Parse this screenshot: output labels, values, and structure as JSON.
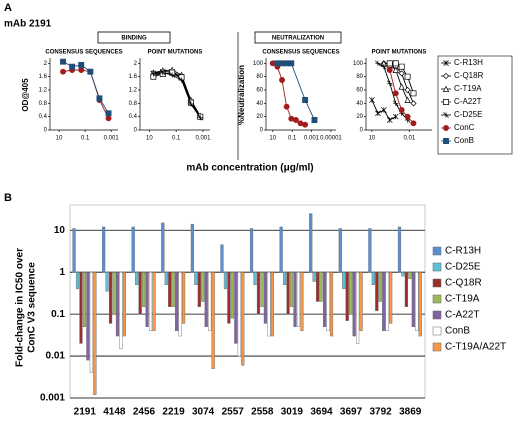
{
  "figure": {
    "panel_a": "A",
    "mab": "mAb 2191",
    "binding": "BINDING",
    "neutralization": "NEUTRALIZATION",
    "x_label": "mAb concentration (μg/ml)",
    "panel_b": "B"
  },
  "chart_data": [
    {
      "type": "line",
      "title": "CONSENSUS SEQUENCES",
      "y_label": "OD@405",
      "xlog": true,
      "xlim": [
        50,
        0.0003
      ],
      "xticks": [
        10,
        0.1,
        0.001
      ],
      "ylim": [
        0,
        2.1
      ],
      "yticks": [
        0,
        0.4,
        0.8,
        1.2,
        1.6,
        2
      ],
      "series": [
        {
          "name": "ConC",
          "color": "#a11d1d",
          "marker": "circle",
          "x": [
            5,
            1,
            0.2,
            0.04,
            0.008,
            0.0016
          ],
          "values": [
            1.75,
            1.8,
            1.8,
            1.75,
            0.9,
            0.35
          ]
        },
        {
          "name": "ConB",
          "color": "#1f4e79",
          "marker": "square",
          "x": [
            5,
            1,
            0.2,
            0.04,
            0.008,
            0.0016
          ],
          "values": [
            2.05,
            1.9,
            1.95,
            1.75,
            0.95,
            0.5
          ]
        }
      ]
    },
    {
      "type": "line",
      "title": "POINT MUTATIONS",
      "xlog": true,
      "xlim": [
        50,
        0.0003
      ],
      "xticks": [
        10,
        0.1,
        0.001
      ],
      "ylim": [
        0,
        2.1
      ],
      "yticks": [
        0,
        0.4,
        0.8,
        1.2,
        1.6,
        2
      ],
      "series": [
        {
          "name": "C-R13H",
          "color": "#000000",
          "marker": "star",
          "x": [
            5,
            1,
            0.2,
            0.04,
            0.008,
            0.0016
          ],
          "values": [
            1.7,
            1.75,
            1.75,
            1.6,
            0.85,
            0.4
          ]
        },
        {
          "name": "C-Q18R",
          "color": "#000000",
          "marker": "diamond",
          "x": [
            5,
            1,
            0.2,
            0.04,
            0.008,
            0.0016
          ],
          "values": [
            1.65,
            1.7,
            1.7,
            1.55,
            0.8,
            0.38
          ]
        },
        {
          "name": "C-T19A",
          "color": "#000000",
          "marker": "triangle",
          "x": [
            5,
            1,
            0.2,
            0.04,
            0.008,
            0.0016
          ],
          "values": [
            1.72,
            1.78,
            1.8,
            1.65,
            0.9,
            0.42
          ]
        },
        {
          "name": "C-A22T",
          "color": "#000000",
          "marker": "square",
          "x": [
            5,
            1,
            0.2,
            0.04,
            0.008,
            0.0016
          ],
          "values": [
            1.6,
            1.68,
            1.72,
            1.58,
            0.82,
            0.4
          ]
        },
        {
          "name": "C-D25E",
          "color": "#000000",
          "marker": "plus",
          "x": [
            5,
            1,
            0.2,
            0.04,
            0.008,
            0.0016
          ],
          "values": [
            1.68,
            1.72,
            1.65,
            1.5,
            0.78,
            0.37
          ]
        }
      ]
    },
    {
      "type": "line",
      "title": "CONSENSUS SEQUENCES",
      "y_label": "%Neutralization",
      "xlog": true,
      "xlim": [
        50,
        3e-06
      ],
      "xticks": [
        10,
        0.1,
        0.001,
        1e-05
      ],
      "ylim": [
        0,
        105
      ],
      "yticks": [
        0,
        20,
        40,
        60,
        80,
        100
      ],
      "series": [
        {
          "name": "ConC",
          "color": "#a11d1d",
          "marker": "circle",
          "x": [
            10,
            3.33,
            1.11,
            0.37,
            0.123,
            0.041,
            0.0137,
            0.0046
          ],
          "values": [
            100,
            95,
            75,
            35,
            17,
            15,
            10,
            8
          ]
        },
        {
          "name": "ConB",
          "color": "#1f4e79",
          "marker": "square",
          "x": [
            3.33,
            1.11,
            0.37,
            0.123,
            0.0046,
            0.0005
          ],
          "values": [
            100,
            100,
            100,
            100,
            45,
            15
          ]
        }
      ]
    },
    {
      "type": "line",
      "title": "POINT MUTATIONS",
      "xlog": true,
      "xlim": [
        30,
        0.00015
      ],
      "xticks": [
        10,
        0.01
      ],
      "ylim": [
        0,
        105
      ],
      "yticks": [
        0,
        20,
        40,
        60,
        80,
        100
      ],
      "series": [
        {
          "name": "C-R13H",
          "color": "#000000",
          "marker": "star",
          "x": [
            10,
            3.33,
            1.11,
            0.37,
            0.123
          ],
          "values": [
            45,
            25,
            30,
            15,
            20
          ]
        },
        {
          "name": "C-Q18R",
          "color": "#000000",
          "marker": "diamond",
          "x": [
            1.11,
            0.37,
            0.123,
            0.041,
            0.0137,
            0.0046
          ],
          "values": [
            100,
            100,
            95,
            85,
            60,
            40
          ]
        },
        {
          "name": "C-T19A",
          "color": "#000000",
          "marker": "triangle",
          "x": [
            1.11,
            0.37,
            0.123,
            0.041,
            0.0137
          ],
          "values": [
            100,
            98,
            90,
            65,
            45
          ]
        },
        {
          "name": "C-A22T",
          "color": "#000000",
          "marker": "square",
          "x": [
            0.37,
            0.123,
            0.041,
            0.0137,
            0.0046
          ],
          "values": [
            100,
            100,
            95,
            80,
            55
          ]
        },
        {
          "name": "C-D25E",
          "color": "#000000",
          "marker": "plus",
          "x": [
            3.33,
            1.11,
            0.37,
            0.123,
            0.041,
            0.0137
          ],
          "values": [
            100,
            95,
            70,
            40,
            25,
            15
          ]
        },
        {
          "name": "ConC",
          "color": "#a11d1d",
          "marker": "circle",
          "x": [
            0.37,
            0.123,
            0.041,
            0.0137,
            0.0046
          ],
          "values": [
            90,
            55,
            30,
            20,
            10
          ]
        }
      ]
    },
    {
      "type": "bar",
      "ylog": true,
      "grid": true,
      "legend": "right",
      "y_label": [
        "Fold-change in IC50 over",
        "ConC V3 sequence"
      ],
      "categories": [
        "2191",
        "4148",
        "2456",
        "2219",
        "3074",
        "2557",
        "2558",
        "3019",
        "3694",
        "3697",
        "3792",
        "3869"
      ],
      "ylim": [
        0.001,
        40
      ],
      "yticks": [
        0.001,
        0.01,
        0.1,
        1,
        10
      ],
      "series": [
        {
          "name": "C-R13H",
          "color": "#5b8fd4",
          "values": [
            11,
            12,
            12,
            15,
            14,
            4.5,
            11,
            12,
            25,
            11,
            11,
            12
          ]
        },
        {
          "name": "C-D25E",
          "color": "#5cc0d6",
          "values": [
            0.4,
            0.35,
            0.5,
            0.5,
            0.5,
            0.4,
            0.5,
            0.5,
            0.6,
            0.4,
            0.5,
            0.8
          ]
        },
        {
          "name": "C-Q18R",
          "color": "#9b2d2d",
          "values": [
            0.02,
            0.06,
            0.1,
            0.15,
            0.15,
            0.06,
            0.1,
            0.1,
            0.2,
            0.07,
            0.12,
            0.15
          ]
        },
        {
          "name": "C-T19A",
          "color": "#9bbb59",
          "values": [
            0.05,
            0.1,
            0.15,
            0.15,
            0.2,
            0.08,
            0.15,
            0.15,
            0.2,
            0.1,
            0.2,
            0.7
          ]
        },
        {
          "name": "C-A22T",
          "color": "#8064a2",
          "values": [
            0.008,
            0.03,
            0.05,
            0.04,
            0.05,
            0.02,
            0.06,
            0.05,
            0.05,
            0.03,
            0.04,
            0.05
          ]
        },
        {
          "name": "ConB",
          "color": "#ffffff",
          "values": [
            0.004,
            0.015,
            0.04,
            0.03,
            0.04,
            0.01,
            0.03,
            0.05,
            0.04,
            0.02,
            0.04,
            0.04
          ]
        },
        {
          "name": "C-T19A/A22T",
          "color": "#f79646",
          "values": [
            0.0012,
            0.03,
            0.04,
            0.06,
            0.005,
            0.006,
            0.03,
            0.04,
            0.03,
            0.04,
            0.06,
            0.03
          ]
        }
      ]
    }
  ]
}
